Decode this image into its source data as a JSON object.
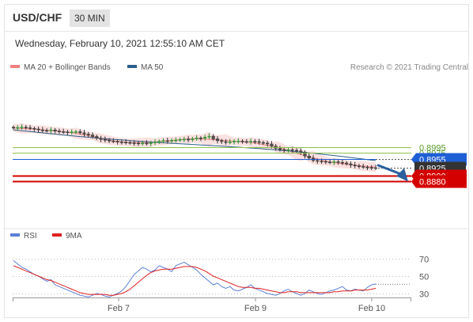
{
  "header": {
    "symbol": "USD/CHF",
    "interval": "30 MIN"
  },
  "datetime": "Wednesday, February 10, 2021 12:55:10 AM CET",
  "legend": {
    "items": [
      {
        "label": "MA 20 + Bollinger Bands",
        "color": "#f08080"
      },
      {
        "label": "MA 50",
        "color": "#2c5f8a"
      }
    ],
    "credit": "Research © 2021 Trading Central"
  },
  "rsi_legend": {
    "items": [
      {
        "label": "RSI",
        "color": "#5b7fd6"
      },
      {
        "label": "9MA",
        "color": "#e02020"
      }
    ]
  },
  "chart_data": [
    {
      "type": "candlestick",
      "xlabel": "",
      "ylabel": "",
      "x_ticks": [
        "Feb 7",
        "Feb 9",
        "Feb 10"
      ],
      "levels": [
        {
          "value": "0.8995",
          "role": "resistance",
          "color": "#8dc24d"
        },
        {
          "value": "0.8975",
          "role": "resistance",
          "color": "#8dc24d"
        },
        {
          "value": "0.8955",
          "role": "pivot",
          "color": "#1f5fd6"
        },
        {
          "value": "0.8925",
          "role": "last",
          "color": "#333333"
        },
        {
          "value": "0.8900",
          "role": "support",
          "color": "#d40000"
        },
        {
          "value": "0.8880",
          "role": "support",
          "color": "#d40000"
        }
      ],
      "close_series": [
        0.9058,
        0.906,
        0.9061,
        0.9059,
        0.9057,
        0.9055,
        0.9052,
        0.905,
        0.9049,
        0.9052,
        0.9048,
        0.9046,
        0.9045,
        0.9044,
        0.9045,
        0.9046,
        0.9042,
        0.9038,
        0.9035,
        0.903,
        0.9024,
        0.902,
        0.9018,
        0.9015,
        0.9014,
        0.9012,
        0.9011,
        0.901,
        0.9009,
        0.9008,
        0.9007,
        0.9008,
        0.9006,
        0.9009,
        0.9012,
        0.9014,
        0.9016,
        0.9015,
        0.9017,
        0.9018,
        0.902,
        0.9021,
        0.9019,
        0.9022,
        0.9025,
        0.9024,
        0.9028,
        0.9031,
        0.9022,
        0.9016,
        0.9013,
        0.901,
        0.9012,
        0.9014,
        0.9015,
        0.9013,
        0.9012,
        0.9014,
        0.9013,
        0.901,
        0.9008,
        0.9005,
        0.8998,
        0.899,
        0.8986,
        0.8985,
        0.8986,
        0.8984,
        0.8982,
        0.8978,
        0.8965,
        0.8958,
        0.895,
        0.8948,
        0.8947,
        0.8945,
        0.8944,
        0.8946,
        0.8944,
        0.8942,
        0.8939,
        0.8935,
        0.8932,
        0.893,
        0.8928,
        0.8927,
        0.8926,
        0.8925
      ],
      "ma50_from": 0.9052,
      "ma50_to": 0.8948,
      "arrow": {
        "direction": "down",
        "from_value": 0.893,
        "to_value": 0.888
      }
    },
    {
      "type": "line",
      "title": "RSI",
      "ylim": [
        20,
        80
      ],
      "y_ticks": [
        "70",
        "50",
        "30"
      ],
      "series": [
        {
          "name": "RSI",
          "values": [
            68,
            64,
            60,
            58,
            55,
            52,
            50,
            47,
            44,
            46,
            40,
            38,
            36,
            34,
            32,
            30,
            28,
            27,
            26,
            28,
            30,
            29,
            27,
            26,
            28,
            30,
            33,
            38,
            45,
            52,
            56,
            60,
            58,
            55,
            57,
            62,
            60,
            58,
            55,
            62,
            64,
            66,
            63,
            60,
            57,
            52,
            48,
            44,
            40,
            42,
            38,
            36,
            38,
            34,
            33,
            35,
            37,
            40,
            36,
            34,
            32,
            30,
            29,
            28,
            30,
            33,
            35,
            32,
            30,
            28,
            30,
            34,
            32,
            30,
            29,
            31,
            33,
            34,
            36,
            38,
            34,
            33,
            35,
            34,
            33,
            37,
            40,
            41
          ]
        },
        {
          "name": "9MA",
          "values": [
            62,
            60,
            58,
            56,
            54,
            52,
            50,
            48,
            46,
            45,
            43,
            41,
            39,
            37,
            35,
            33,
            31,
            30,
            29,
            29,
            29,
            29,
            29,
            28,
            28,
            29,
            30,
            32,
            35,
            39,
            43,
            47,
            51,
            54,
            56,
            57,
            58,
            58,
            58,
            59,
            60,
            61,
            61,
            61,
            60,
            58,
            56,
            53,
            50,
            48,
            46,
            44,
            42,
            40,
            38,
            37,
            37,
            37,
            36,
            36,
            35,
            34,
            33,
            32,
            31,
            31,
            32,
            32,
            32,
            31,
            31,
            31,
            31,
            31,
            31,
            31,
            31,
            32,
            32,
            33,
            33,
            33,
            34,
            34,
            34,
            34,
            35,
            36
          ]
        }
      ]
    }
  ]
}
